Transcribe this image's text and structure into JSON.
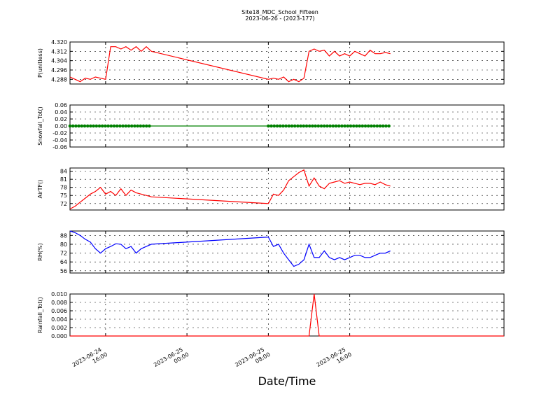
{
  "figure": {
    "title": "Site18_MDC_School_Fifteen",
    "subtitle": "2023-06-26 - (2023-177)",
    "xlabel": "Date/Time"
  },
  "chart_data": [
    {
      "type": "line",
      "ylabel": "P(unitless)",
      "ylim": [
        4.284,
        4.32
      ],
      "yticks": [
        "4.320",
        "4.312",
        "4.304",
        "4.296",
        "4.288"
      ],
      "color": "#ff0000",
      "marker": "none",
      "grid": true,
      "x_range": [
        "2023-06-24 12:30",
        "2023-06-26 07:10"
      ],
      "x": [
        "2023-06-24 12:30",
        "2023-06-24 13:00",
        "2023-06-24 13:30",
        "2023-06-24 14:00",
        "2023-06-24 14:30",
        "2023-06-24 15:00",
        "2023-06-24 15:30",
        "2023-06-24 16:00",
        "2023-06-24 16:30",
        "2023-06-24 17:00",
        "2023-06-24 17:30",
        "2023-06-24 18:00",
        "2023-06-24 18:30",
        "2023-06-24 19:00",
        "2023-06-24 19:30",
        "2023-06-24 20:00",
        "2023-06-24 20:30",
        "2023-06-25 08:00",
        "2023-06-25 08:30",
        "2023-06-25 09:00",
        "2023-06-25 09:30",
        "2023-06-25 10:00",
        "2023-06-25 10:30",
        "2023-06-25 11:00",
        "2023-06-25 11:30",
        "2023-06-25 12:00",
        "2023-06-25 12:30",
        "2023-06-25 13:00",
        "2023-06-25 13:30",
        "2023-06-25 14:00",
        "2023-06-25 14:30",
        "2023-06-25 15:00",
        "2023-06-25 15:30",
        "2023-06-25 16:00",
        "2023-06-25 16:30",
        "2023-06-25 17:00",
        "2023-06-25 17:30",
        "2023-06-25 18:00",
        "2023-06-25 18:30",
        "2023-06-25 19:00",
        "2023-06-25 19:30",
        "2023-06-25 20:00"
      ],
      "values": [
        4.29,
        4.288,
        4.286,
        4.289,
        4.288,
        4.29,
        4.289,
        4.288,
        4.316,
        4.316,
        4.314,
        4.316,
        4.313,
        4.316,
        4.312,
        4.316,
        4.312,
        4.288,
        4.289,
        4.288,
        4.29,
        4.286,
        4.288,
        4.286,
        4.289,
        4.312,
        4.314,
        4.312,
        4.313,
        4.308,
        4.312,
        4.308,
        4.31,
        4.308,
        4.312,
        4.31,
        4.308,
        4.313,
        4.31,
        4.31,
        4.311,
        4.31
      ]
    },
    {
      "type": "line",
      "ylabel": "Snowfall_Tot()",
      "ylim": [
        -0.06,
        0.06
      ],
      "yticks": [
        "0.06",
        "0.04",
        "0.02",
        "0.00",
        "-0.02",
        "-0.04",
        "-0.06"
      ],
      "color": "#008000",
      "marker": "dot",
      "grid": true,
      "x_range": [
        "2023-06-24 12:30",
        "2023-06-26 07:10"
      ],
      "x": [
        "2023-06-24 12:30",
        "2023-06-24 20:30",
        "2023-06-25 08:00",
        "2023-06-25 20:00"
      ],
      "values": [
        0,
        0,
        0,
        0
      ],
      "marker_segments": [
        [
          "2023-06-24 12:30",
          "2023-06-24 20:30"
        ],
        [
          "2023-06-25 08:00",
          "2023-06-25 20:00"
        ]
      ]
    },
    {
      "type": "line",
      "ylabel": "AirTF()",
      "ylim": [
        69.6,
        85.2
      ],
      "yticks": [
        "84",
        "81",
        "78",
        "75",
        "72"
      ],
      "color": "#ff0000",
      "marker": "none",
      "grid": true,
      "x_range": [
        "2023-06-24 12:30",
        "2023-06-26 07:10"
      ],
      "x": [
        "2023-06-24 12:30",
        "2023-06-24 13:00",
        "2023-06-24 13:30",
        "2023-06-24 14:00",
        "2023-06-24 14:30",
        "2023-06-24 15:00",
        "2023-06-24 15:30",
        "2023-06-24 16:00",
        "2023-06-24 16:30",
        "2023-06-24 17:00",
        "2023-06-24 17:30",
        "2023-06-24 18:00",
        "2023-06-24 18:30",
        "2023-06-24 19:00",
        "2023-06-24 19:30",
        "2023-06-24 20:00",
        "2023-06-24 20:30",
        "2023-06-25 08:00",
        "2023-06-25 08:30",
        "2023-06-25 09:00",
        "2023-06-25 09:30",
        "2023-06-25 10:00",
        "2023-06-25 10:30",
        "2023-06-25 11:00",
        "2023-06-25 11:30",
        "2023-06-25 12:00",
        "2023-06-25 12:30",
        "2023-06-25 13:00",
        "2023-06-25 13:30",
        "2023-06-25 14:00",
        "2023-06-25 14:30",
        "2023-06-25 15:00",
        "2023-06-25 15:30",
        "2023-06-25 16:00",
        "2023-06-25 16:30",
        "2023-06-25 17:00",
        "2023-06-25 17:30",
        "2023-06-25 18:00",
        "2023-06-25 18:30",
        "2023-06-25 19:00",
        "2023-06-25 19:30",
        "2023-06-25 20:00"
      ],
      "values": [
        70.0,
        71.0,
        72.5,
        74.0,
        75.5,
        76.5,
        78.0,
        75.5,
        76.5,
        75.0,
        77.5,
        75.0,
        77.0,
        76.0,
        75.5,
        75.0,
        74.5,
        72.0,
        75.5,
        75.0,
        77.0,
        80.5,
        82.0,
        83.5,
        84.5,
        78.5,
        81.5,
        78.5,
        77.5,
        79.5,
        80.0,
        80.5,
        79.5,
        80.0,
        79.5,
        79.0,
        79.5,
        79.5,
        79.0,
        80.0,
        79.0,
        78.5
      ]
    },
    {
      "type": "line",
      "ylabel": "RH(%)",
      "ylim": [
        54,
        92
      ],
      "yticks": [
        "88",
        "80",
        "72",
        "64",
        "56"
      ],
      "color": "#0000ff",
      "marker": "none",
      "grid": true,
      "x_range": [
        "2023-06-24 12:30",
        "2023-06-26 07:10"
      ],
      "x": [
        "2023-06-24 12:30",
        "2023-06-24 13:00",
        "2023-06-24 13:30",
        "2023-06-24 14:00",
        "2023-06-24 14:30",
        "2023-06-24 15:00",
        "2023-06-24 15:30",
        "2023-06-24 16:00",
        "2023-06-24 16:30",
        "2023-06-24 17:00",
        "2023-06-24 17:30",
        "2023-06-24 18:00",
        "2023-06-24 18:30",
        "2023-06-24 19:00",
        "2023-06-24 19:30",
        "2023-06-24 20:00",
        "2023-06-24 20:30",
        "2023-06-25 08:00",
        "2023-06-25 08:30",
        "2023-06-25 09:00",
        "2023-06-25 09:30",
        "2023-06-25 10:00",
        "2023-06-25 10:30",
        "2023-06-25 11:00",
        "2023-06-25 11:30",
        "2023-06-25 12:00",
        "2023-06-25 12:30",
        "2023-06-25 13:00",
        "2023-06-25 13:30",
        "2023-06-25 14:00",
        "2023-06-25 14:30",
        "2023-06-25 15:00",
        "2023-06-25 15:30",
        "2023-06-25 16:00",
        "2023-06-25 16:30",
        "2023-06-25 17:00",
        "2023-06-25 17:30",
        "2023-06-25 18:00",
        "2023-06-25 18:30",
        "2023-06-25 19:00",
        "2023-06-25 19:30",
        "2023-06-25 20:00"
      ],
      "values": [
        92.0,
        90.5,
        88.0,
        84.5,
        82.0,
        76.0,
        72.0,
        76.0,
        78.0,
        80.5,
        80.0,
        76.0,
        78.0,
        72.0,
        76.0,
        78.0,
        80.0,
        86.5,
        78.0,
        80.0,
        72.0,
        66.0,
        60.0,
        62.0,
        66.0,
        80.0,
        68.0,
        68.0,
        74.0,
        68.0,
        66.0,
        68.0,
        66.0,
        68.0,
        70.0,
        70.0,
        68.0,
        68.0,
        70.0,
        72.0,
        72.0,
        74.0
      ]
    },
    {
      "type": "line",
      "ylabel": "Rainfall_Tot()",
      "ylim": [
        0.0,
        0.01
      ],
      "yticks": [
        "0.010",
        "0.008",
        "0.006",
        "0.004",
        "0.002",
        "0.000"
      ],
      "color": "#ff0000",
      "marker": "none",
      "grid": true,
      "x_range": [
        "2023-06-24 12:30",
        "2023-06-26 07:10"
      ],
      "x": [
        "2023-06-24 12:30",
        "2023-06-25 12:00",
        "2023-06-25 12:30",
        "2023-06-25 13:00",
        "2023-06-26 07:10"
      ],
      "values": [
        0.0,
        0.0,
        0.01,
        0.0,
        0.0
      ]
    }
  ],
  "xaxis": {
    "ticks": [
      {
        "t": "2023-06-24 16:00",
        "line1": "2023-06-24",
        "line2": "16:00"
      },
      {
        "t": "2023-06-25 00:00",
        "line1": "2023-06-25",
        "line2": "00:00"
      },
      {
        "t": "2023-06-25 08:00",
        "line1": "2023-06-25",
        "line2": "08:00"
      },
      {
        "t": "2023-06-25 16:00",
        "line1": "2023-06-25",
        "line2": "16:00"
      }
    ]
  }
}
